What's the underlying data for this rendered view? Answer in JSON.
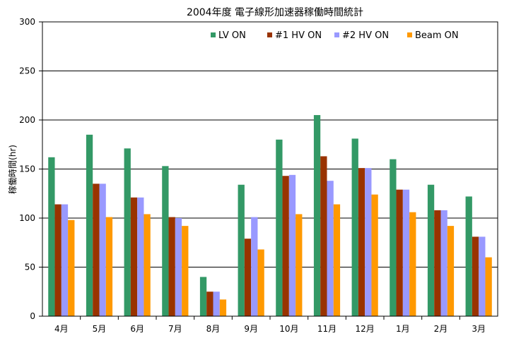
{
  "chart_data": {
    "type": "bar",
    "title": "2004年度 電子線形加速器稼働時間統計",
    "xlabel": "",
    "ylabel": "稼働時間(hr)",
    "ylim": [
      0,
      300
    ],
    "yticks": [
      0,
      50,
      100,
      150,
      200,
      250,
      300
    ],
    "grid": "horizontal",
    "legend_position": "top-right",
    "categories": [
      "4月",
      "5月",
      "6月",
      "7月",
      "8月",
      "9月",
      "10月",
      "11月",
      "12月",
      "1月",
      "2月",
      "3月"
    ],
    "series": [
      {
        "name": "LV ON",
        "color": "#339966",
        "values": [
          162,
          185,
          171,
          153,
          40,
          134,
          180,
          205,
          181,
          160,
          134,
          122
        ]
      },
      {
        "name": "#1 HV ON",
        "color": "#993300",
        "values": [
          114,
          135,
          121,
          101,
          25,
          79,
          143,
          163,
          151,
          129,
          108,
          81
        ]
      },
      {
        "name": "#2 HV ON",
        "color": "#9999FF",
        "values": [
          114,
          135,
          121,
          100,
          25,
          101,
          144,
          138,
          151,
          129,
          108,
          81
        ]
      },
      {
        "name": "Beam ON",
        "color": "#FF9900",
        "values": [
          98,
          101,
          104,
          92,
          17,
          68,
          104,
          114,
          124,
          106,
          92,
          60
        ]
      }
    ]
  }
}
